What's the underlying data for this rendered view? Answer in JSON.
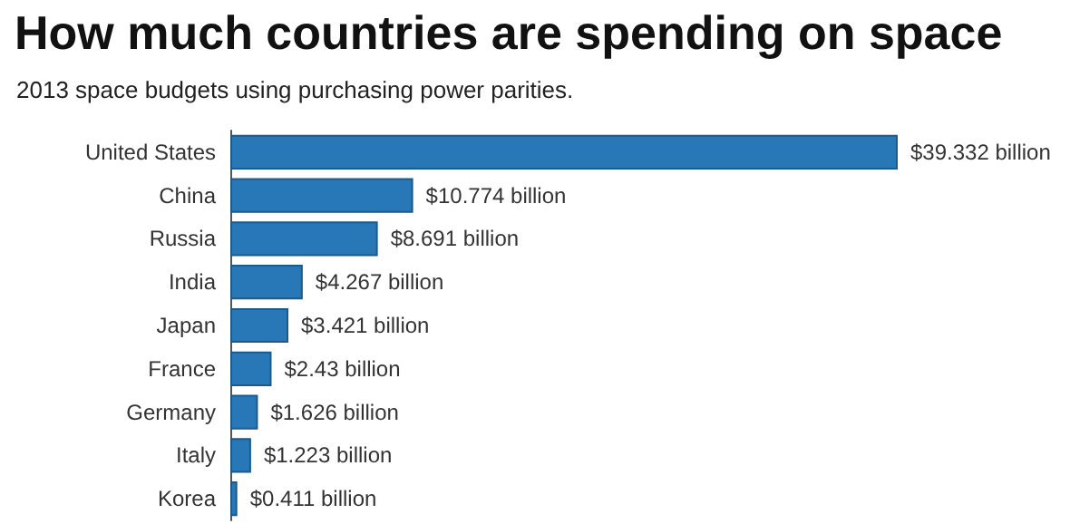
{
  "chart_data": {
    "type": "bar",
    "orientation": "horizontal",
    "title": "How much countries are spending on space",
    "subtitle": "2013 space budgets using purchasing power parities.",
    "categories": [
      "United States",
      "China",
      "Russia",
      "India",
      "Japan",
      "France",
      "Germany",
      "Italy",
      "Korea"
    ],
    "values": [
      39.332,
      10.774,
      8.691,
      4.267,
      3.421,
      2.43,
      1.626,
      1.223,
      0.411
    ],
    "value_labels": [
      "$39.332 billion",
      "$10.774 billion",
      "$8.691 billion",
      "$4.267 billion",
      "$3.421 billion",
      "$2.43 billion",
      "$1.626 billion",
      "$1.223 billion",
      "$0.411 billion"
    ],
    "color": "#2878b8",
    "tick_labels": "y"
  }
}
